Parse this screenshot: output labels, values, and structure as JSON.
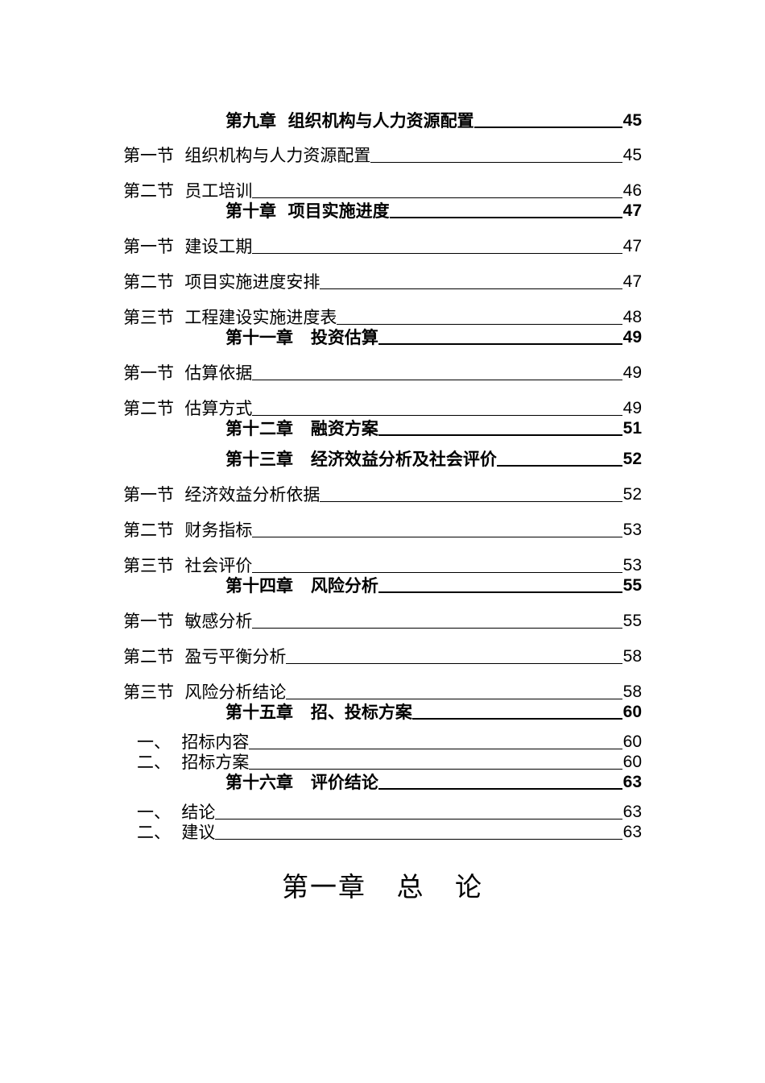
{
  "toc": [
    {
      "type": "chapter",
      "label": "第九章  组织机构与人力资源配置",
      "page": "45"
    },
    {
      "type": "section",
      "label": "第一节  组织机构与人力资源配置",
      "page": "45"
    },
    {
      "type": "section",
      "label": "第二节  员工培训",
      "page": "46"
    },
    {
      "type": "chapter",
      "label": "第十章  项目实施进度",
      "page": "47"
    },
    {
      "type": "section",
      "label": "第一节  建设工期",
      "page": "47"
    },
    {
      "type": "section",
      "label": "第二节  项目实施进度安排",
      "page": "47"
    },
    {
      "type": "section",
      "label": "第三节  工程建设实施进度表",
      "page": "48"
    },
    {
      "type": "chapter",
      "label": "第十一章   投资估算",
      "page": "49"
    },
    {
      "type": "section",
      "label": "第一节  估算依据",
      "page": "49"
    },
    {
      "type": "section",
      "label": "第二节  估算方式",
      "page": "49"
    },
    {
      "type": "chapter",
      "label": "第十二章   融资方案",
      "page": "51"
    },
    {
      "type": "chapter",
      "label": "第十三章   经济效益分析及社会评价",
      "page": "52"
    },
    {
      "type": "section",
      "label": "第一节  经济效益分析依据",
      "page": "52"
    },
    {
      "type": "section",
      "label": "第二节  财务指标",
      "page": "53"
    },
    {
      "type": "section",
      "label": "第三节  社会评价",
      "page": "53"
    },
    {
      "type": "chapter",
      "label": "第十四章   风险分析",
      "page": "55"
    },
    {
      "type": "section",
      "label": "第一节  敏感分析",
      "page": "55"
    },
    {
      "type": "section",
      "label": "第二节  盈亏平衡分析",
      "page": "58"
    },
    {
      "type": "section",
      "label": "第三节  风险分析结论",
      "page": "58"
    },
    {
      "type": "chapter",
      "label": "第十五章   招、投标方案",
      "page": "60"
    },
    {
      "type": "item",
      "label": "一、  招标内容",
      "page": "60"
    },
    {
      "type": "item",
      "label": "二、  招标方案",
      "page": "60"
    },
    {
      "type": "chapter",
      "label": "第十六章   评价结论",
      "page": "63"
    },
    {
      "type": "item",
      "label": "一、  结论",
      "page": "63"
    },
    {
      "type": "item",
      "label": "二、  建议",
      "page": "63"
    }
  ],
  "heading": "第一章   总   论"
}
